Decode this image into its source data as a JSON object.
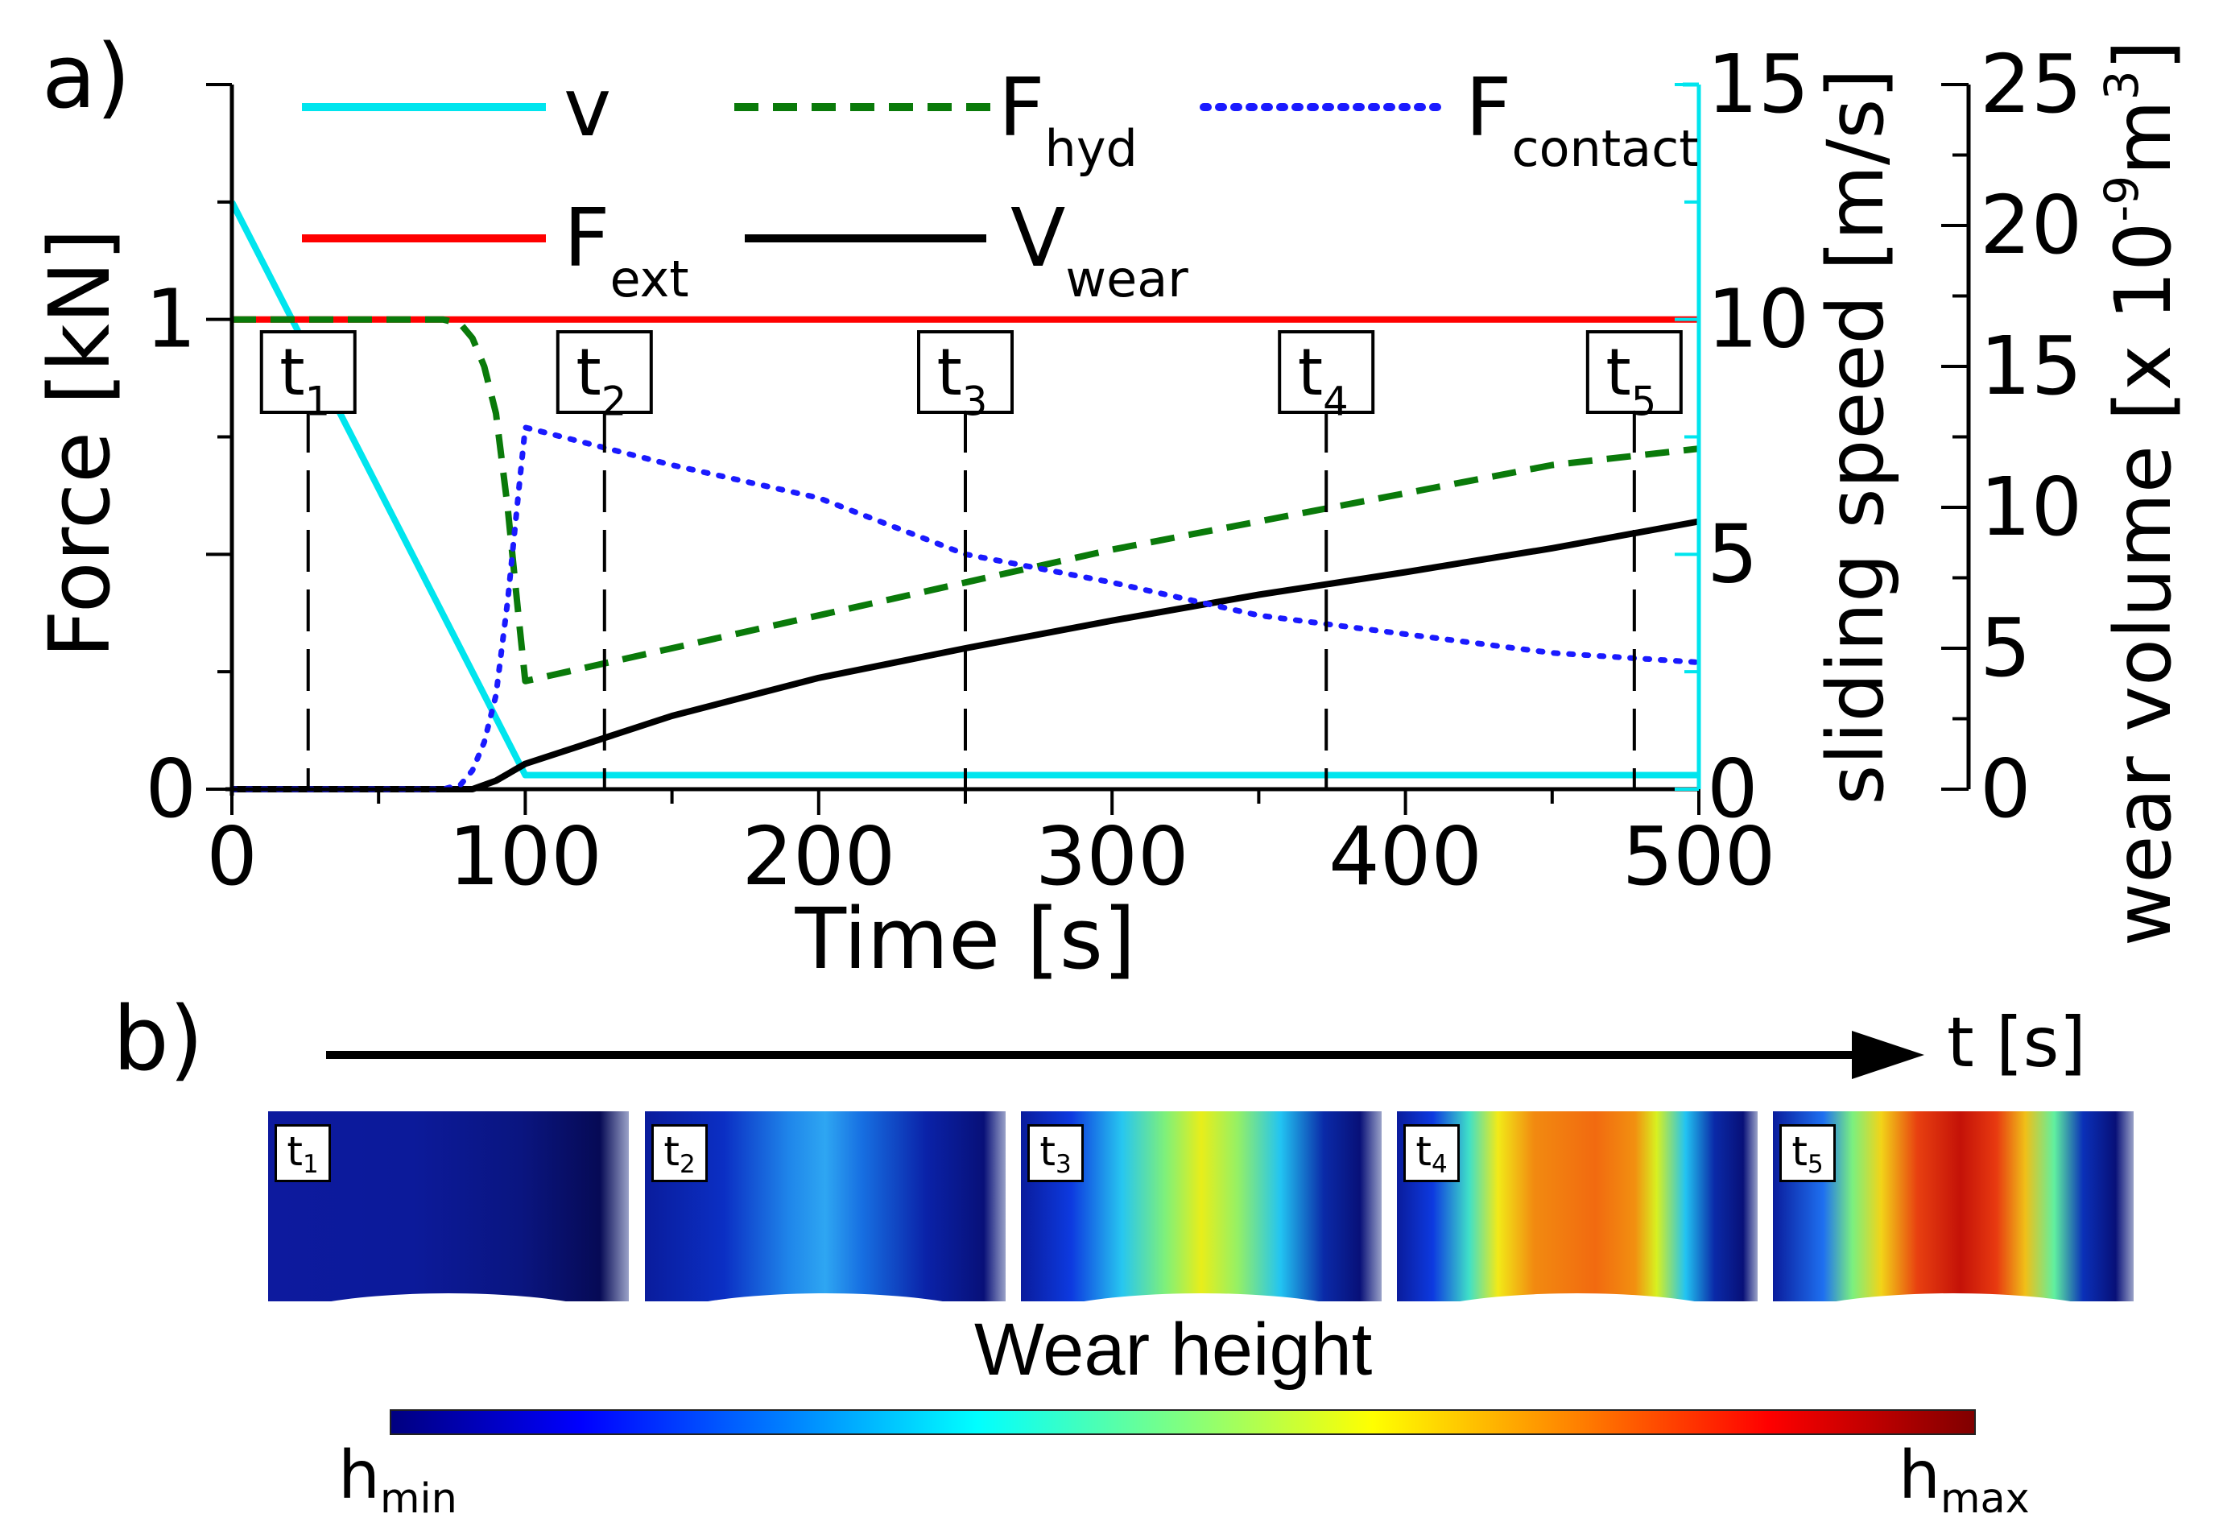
{
  "panel_a_label": "a)",
  "panel_b_label": "b)",
  "time_arrow_label": "t [s]",
  "wear_height_title": "Wear height",
  "colorbar": {
    "min_main": "h",
    "min_sub": "min",
    "max_main": "h",
    "max_sub": "max"
  },
  "strips": [
    {
      "main": "t",
      "sub": "1"
    },
    {
      "main": "t",
      "sub": "2"
    },
    {
      "main": "t",
      "sub": "3"
    },
    {
      "main": "t",
      "sub": "4"
    },
    {
      "main": "t",
      "sub": "5"
    }
  ],
  "colors": {
    "v": "#00e5ee",
    "F_ext": "#ff0000",
    "F_hyd": "#0a7a0a",
    "F_contact": "#1a1aff",
    "V_wear": "#000000"
  },
  "chart_data": {
    "type": "line",
    "xlabel": "Time [s]",
    "ylabel": "Force [kN]",
    "y2label": "sliding speed [m/s]",
    "y3label_main": "wear volume [x 10",
    "y3label_exp1": "-9",
    "y3label_mid": "m",
    "y3label_exp2": "3",
    "y3label_end": "]",
    "xlim": [
      0,
      500
    ],
    "ylim": [
      0,
      1.5
    ],
    "y2lim": [
      0,
      15
    ],
    "y3lim": [
      0,
      25
    ],
    "x_ticks": [
      "0",
      "100",
      "200",
      "300",
      "400",
      "500"
    ],
    "y_ticks": [
      "0",
      "1"
    ],
    "y2_ticks": [
      "0",
      "5",
      "10",
      "15"
    ],
    "y3_ticks": [
      "0",
      "5",
      "10",
      "15",
      "20",
      "25"
    ],
    "legend": [
      {
        "main": "v",
        "sub": ""
      },
      {
        "main": "F",
        "sub": "hyd"
      },
      {
        "main": "F",
        "sub": "contact"
      },
      {
        "main": "F",
        "sub": "ext"
      },
      {
        "main": "V",
        "sub": "wear"
      }
    ],
    "time_markers": [
      {
        "main": "t",
        "sub": "1",
        "x": 26
      },
      {
        "main": "t",
        "sub": "2",
        "x": 127
      },
      {
        "main": "t",
        "sub": "3",
        "x": 250
      },
      {
        "main": "t",
        "sub": "4",
        "x": 373
      },
      {
        "main": "t",
        "sub": "5",
        "x": 478
      }
    ],
    "series": [
      {
        "name": "v",
        "axis": "speed",
        "x": [
          0,
          100,
          500
        ],
        "y": [
          12.5,
          0.3,
          0.3
        ]
      },
      {
        "name": "F_ext",
        "axis": "force",
        "x": [
          0,
          500
        ],
        "y": [
          1.0,
          1.0
        ]
      },
      {
        "name": "F_hyd",
        "axis": "force",
        "x": [
          0,
          72,
          78,
          82,
          86,
          90,
          94,
          98,
          100,
          150,
          200,
          250,
          300,
          350,
          400,
          450,
          500
        ],
        "y": [
          1.0,
          1.0,
          0.99,
          0.96,
          0.9,
          0.8,
          0.6,
          0.35,
          0.23,
          0.3,
          0.37,
          0.44,
          0.51,
          0.57,
          0.63,
          0.69,
          0.725
        ]
      },
      {
        "name": "F_contact",
        "axis": "force",
        "x": [
          0,
          72,
          78,
          82,
          86,
          90,
          94,
          98,
          100,
          150,
          200,
          250,
          300,
          350,
          400,
          450,
          500
        ],
        "y": [
          0.0,
          0.0,
          0.01,
          0.04,
          0.1,
          0.2,
          0.4,
          0.65,
          0.77,
          0.69,
          0.62,
          0.5,
          0.44,
          0.37,
          0.33,
          0.29,
          0.27
        ]
      },
      {
        "name": "V_wear",
        "axis": "wear",
        "x": [
          0,
          82,
          90,
          100,
          150,
          200,
          250,
          300,
          350,
          400,
          450,
          500
        ],
        "y": [
          0.0,
          0.0,
          0.3,
          0.9,
          2.6,
          3.95,
          5.0,
          5.98,
          6.9,
          7.7,
          8.55,
          9.5
        ]
      }
    ]
  }
}
